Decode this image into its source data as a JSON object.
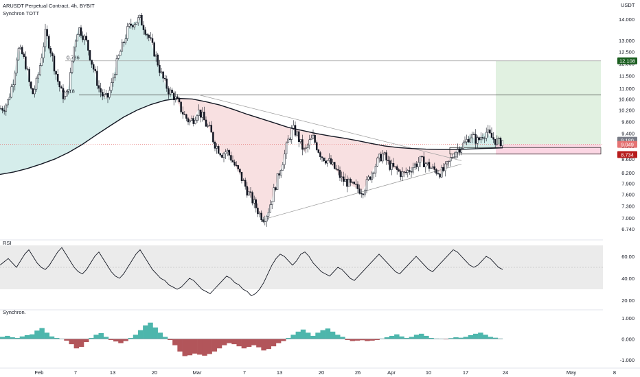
{
  "header": {
    "title": "ARUSDT Perpetual Contract, 4h, BYBIT",
    "indicator": "Synchron TOTT"
  },
  "chart_data": [
    {
      "type": "candlestick",
      "pane": "price",
      "unit": "USDT",
      "ylim": [
        6.74,
        14.2
      ],
      "y_ticks": [
        "14.000",
        "13.000",
        "12.500",
        "12.000",
        "11.500",
        "11.000",
        "10.600",
        "10.200",
        "9.800",
        "9.400",
        "9.000",
        "8.600",
        "8.200",
        "7.900",
        "7.600",
        "7.300",
        "7.000",
        "6.740"
      ],
      "x_ticks": [
        "Feb",
        "7",
        "13",
        "20",
        "Mar",
        "7",
        "13",
        "20",
        "26",
        "Apr",
        "10",
        "17",
        "24",
        "May",
        "8"
      ],
      "fib_labels": [
        "0.786",
        "0.618"
      ],
      "price_tags": [
        {
          "label": "12.108",
          "value": 12.108,
          "color": "#1b5e20"
        },
        {
          "label": "9.180",
          "value": 9.18,
          "color": "#787b86"
        },
        {
          "label": "9.049",
          "value": 9.049,
          "color": "#e57373"
        },
        {
          "label": "8.734",
          "value": 8.734,
          "color": "#b71c1c"
        }
      ],
      "close_path": [
        [
          0,
          10.25
        ],
        [
          6,
          10.3
        ],
        [
          12,
          10.55
        ],
        [
          20,
          11.4
        ],
        [
          26,
          12.6
        ],
        [
          32,
          12.4
        ],
        [
          38,
          11.9
        ],
        [
          44,
          11.0
        ],
        [
          48,
          10.8
        ],
        [
          54,
          11.3
        ],
        [
          60,
          12.2
        ],
        [
          66,
          13.3
        ],
        [
          72,
          12.8
        ],
        [
          78,
          12.0
        ],
        [
          84,
          11.3
        ],
        [
          90,
          10.8
        ],
        [
          96,
          10.6
        ],
        [
          102,
          11.4
        ],
        [
          108,
          12.8
        ],
        [
          114,
          13.6
        ],
        [
          120,
          13.3
        ],
        [
          126,
          12.9
        ],
        [
          132,
          12.2
        ],
        [
          138,
          11.6
        ],
        [
          144,
          11.0
        ],
        [
          150,
          10.7
        ],
        [
          156,
          10.6
        ],
        [
          162,
          11.1
        ],
        [
          168,
          11.8
        ],
        [
          174,
          12.4
        ],
        [
          180,
          12.9
        ],
        [
          186,
          13.5
        ],
        [
          192,
          13.8
        ],
        [
          198,
          13.9
        ],
        [
          204,
          14.0
        ],
        [
          210,
          13.6
        ],
        [
          216,
          13.2
        ],
        [
          222,
          12.7
        ],
        [
          228,
          12.2
        ],
        [
          234,
          11.6
        ],
        [
          240,
          11.2
        ],
        [
          246,
          10.9
        ],
        [
          252,
          10.75
        ],
        [
          258,
          10.5
        ],
        [
          264,
          10.2
        ],
        [
          270,
          9.95
        ],
        [
          276,
          9.8
        ],
        [
          282,
          9.9
        ],
        [
          288,
          10.2
        ],
        [
          294,
          10.0
        ],
        [
          300,
          9.7
        ],
        [
          306,
          9.5
        ],
        [
          312,
          9.1
        ],
        [
          318,
          8.9
        ],
        [
          324,
          8.75
        ],
        [
          330,
          8.85
        ],
        [
          336,
          8.65
        ],
        [
          342,
          8.4
        ],
        [
          348,
          8.2
        ],
        [
          354,
          7.95
        ],
        [
          360,
          7.7
        ],
        [
          366,
          7.5
        ],
        [
          372,
          7.3
        ],
        [
          378,
          7.1
        ],
        [
          384,
          7.0
        ],
        [
          390,
          7.15
        ],
        [
          396,
          7.5
        ],
        [
          402,
          7.9
        ],
        [
          408,
          8.3
        ],
        [
          414,
          8.7
        ],
        [
          420,
          9.2
        ],
        [
          426,
          9.55
        ],
        [
          432,
          9.4
        ],
        [
          438,
          9.05
        ],
        [
          444,
          8.8
        ],
        [
          450,
          9.1
        ],
        [
          456,
          9.25
        ],
        [
          462,
          8.95
        ],
        [
          468,
          8.7
        ],
        [
          474,
          8.6
        ],
        [
          480,
          8.5
        ],
        [
          486,
          8.35
        ],
        [
          492,
          8.2
        ],
        [
          498,
          8.0
        ],
        [
          504,
          7.95
        ],
        [
          510,
          7.85
        ],
        [
          516,
          7.8
        ],
        [
          522,
          7.75
        ],
        [
          528,
          7.7
        ],
        [
          534,
          7.9
        ],
        [
          540,
          8.15
        ],
        [
          546,
          8.4
        ],
        [
          552,
          8.6
        ],
        [
          558,
          8.75
        ],
        [
          564,
          8.5
        ],
        [
          570,
          8.35
        ],
        [
          576,
          8.3
        ],
        [
          582,
          8.2
        ],
        [
          588,
          8.15
        ],
        [
          594,
          8.25
        ],
        [
          600,
          8.35
        ],
        [
          606,
          8.45
        ],
        [
          612,
          8.55
        ],
        [
          618,
          8.5
        ],
        [
          624,
          8.4
        ],
        [
          630,
          8.3
        ],
        [
          636,
          8.25
        ],
        [
          642,
          8.2
        ],
        [
          648,
          8.3
        ],
        [
          654,
          8.5
        ],
        [
          660,
          8.75
        ],
        [
          666,
          8.9
        ],
        [
          672,
          9.0
        ],
        [
          678,
          9.1
        ],
        [
          684,
          9.35
        ],
        [
          690,
          9.25
        ],
        [
          696,
          9.15
        ],
        [
          702,
          9.35
        ],
        [
          708,
          9.45
        ],
        [
          714,
          9.3
        ],
        [
          720,
          9.2
        ],
        [
          726,
          9.1
        ],
        [
          732,
          9.18
        ]
      ],
      "tott_line": [
        [
          0,
          8.15
        ],
        [
          20,
          8.22
        ],
        [
          40,
          8.32
        ],
        [
          60,
          8.45
        ],
        [
          80,
          8.6
        ],
        [
          100,
          8.8
        ],
        [
          120,
          9.05
        ],
        [
          140,
          9.35
        ],
        [
          160,
          9.65
        ],
        [
          180,
          9.95
        ],
        [
          200,
          10.2
        ],
        [
          220,
          10.4
        ],
        [
          240,
          10.55
        ],
        [
          260,
          10.62
        ],
        [
          280,
          10.6
        ],
        [
          300,
          10.5
        ],
        [
          320,
          10.38
        ],
        [
          340,
          10.22
        ],
        [
          360,
          10.05
        ],
        [
          380,
          9.9
        ],
        [
          400,
          9.75
        ],
        [
          420,
          9.6
        ],
        [
          440,
          9.5
        ],
        [
          460,
          9.4
        ],
        [
          480,
          9.32
        ],
        [
          500,
          9.25
        ],
        [
          520,
          9.17
        ],
        [
          540,
          9.08
        ],
        [
          560,
          9.0
        ],
        [
          580,
          8.95
        ],
        [
          600,
          8.92
        ],
        [
          620,
          8.9
        ],
        [
          640,
          8.89
        ],
        [
          660,
          8.89
        ],
        [
          680,
          8.9
        ],
        [
          700,
          8.92
        ],
        [
          720,
          8.93
        ],
        [
          732,
          8.94
        ]
      ],
      "trendlines": [
        {
          "from": [
            290,
            10.75
          ],
          "to": [
            672,
            8.55
          ]
        },
        {
          "from": [
            380,
            6.95
          ],
          "to": [
            672,
            8.45
          ]
        }
      ],
      "fib_levels": [
        {
          "label": "0.786",
          "value": 12.108
        },
        {
          "label": "0.618",
          "value": 10.75
        }
      ],
      "trade_box": {
        "x_start": 722,
        "x_end": 875,
        "entry": 9.049,
        "target": 12.108,
        "stop": 8.734
      }
    },
    {
      "type": "line",
      "pane": "RSI",
      "title": "RSI",
      "ylim": [
        20,
        70
      ],
      "y_ticks": [
        "60.00",
        "40.00",
        "20.00"
      ],
      "band": [
        30,
        70
      ],
      "midline": 50,
      "values": [
        52,
        55,
        58,
        54,
        50,
        56,
        62,
        66,
        60,
        54,
        50,
        48,
        52,
        58,
        64,
        68,
        62,
        56,
        50,
        46,
        44,
        48,
        54,
        60,
        64,
        58,
        52,
        46,
        42,
        40,
        44,
        50,
        56,
        62,
        66,
        60,
        54,
        48,
        44,
        40,
        38,
        34,
        32,
        30,
        32,
        36,
        40,
        38,
        34,
        30,
        28,
        26,
        30,
        34,
        38,
        42,
        40,
        36,
        34,
        30,
        28,
        24,
        26,
        30,
        36,
        44,
        52,
        58,
        62,
        60,
        56,
        52,
        56,
        62,
        64,
        60,
        54,
        50,
        46,
        44,
        42,
        46,
        50,
        48,
        44,
        40,
        38,
        42,
        46,
        50,
        54,
        58,
        62,
        58,
        54,
        50,
        46,
        44,
        48,
        52,
        56,
        60,
        56,
        52,
        48,
        46,
        50,
        54,
        58,
        62,
        66,
        64,
        60,
        56,
        52,
        50,
        52,
        56,
        60,
        58,
        54,
        50,
        48
      ]
    },
    {
      "type": "bar",
      "pane": "Synchron",
      "title": "Synchron.",
      "ylim": [
        -1.0,
        1.0
      ],
      "y_ticks": [
        "1.000",
        "0.000",
        "-1.000"
      ],
      "positive_color": "#4db6ac",
      "negative_color": "#b2555a",
      "values": [
        0.1,
        0.15,
        0.08,
        0.05,
        0.12,
        0.18,
        0.22,
        0.4,
        0.52,
        0.3,
        0.12,
        0.05,
        0.0,
        -0.08,
        -0.25,
        -0.45,
        -0.38,
        -0.15,
        0.05,
        0.2,
        0.28,
        0.1,
        -0.05,
        -0.12,
        -0.2,
        -0.1,
        0.05,
        0.2,
        0.42,
        0.65,
        0.78,
        0.55,
        0.3,
        0.1,
        -0.05,
        -0.3,
        -0.6,
        -0.82,
        -0.78,
        -0.7,
        -0.75,
        -0.8,
        -0.72,
        -0.6,
        -0.45,
        -0.3,
        -0.2,
        -0.25,
        -0.35,
        -0.45,
        -0.38,
        -0.3,
        -0.4,
        -0.55,
        -0.48,
        -0.35,
        -0.2,
        -0.1,
        0.05,
        0.2,
        0.35,
        0.45,
        0.3,
        0.15,
        0.3,
        0.42,
        0.5,
        0.35,
        0.2,
        0.1,
        -0.05,
        -0.1,
        -0.08,
        -0.06,
        -0.1,
        -0.08,
        -0.05,
        0.02,
        0.08,
        0.15,
        0.22,
        0.12,
        0.05,
        0.1,
        0.2,
        0.25,
        0.15,
        0.05,
        0.02,
        0.0,
        -0.02,
        0.04,
        0.08,
        0.06,
        0.1,
        0.18,
        0.25,
        0.3,
        0.2,
        0.1,
        0.06,
        0.02
      ]
    }
  ]
}
